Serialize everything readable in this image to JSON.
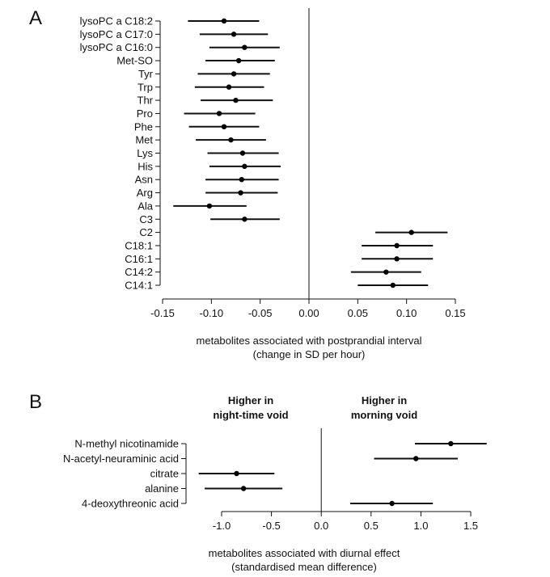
{
  "chart_data": [
    {
      "type": "forest",
      "panel_label": "A",
      "categories": [
        "lysoPC a C18:2",
        "lysoPC a C17:0",
        "lysoPC a C16:0",
        "Met-SO",
        "Tyr",
        "Trp",
        "Thr",
        "Pro",
        "Phe",
        "Met",
        "Lys",
        "His",
        "Asn",
        "Arg",
        "Ala",
        "C3",
        "C2",
        "C18:1",
        "C16:1",
        "C14:2",
        "C14:1"
      ],
      "estimates": [
        -0.087,
        -0.077,
        -0.066,
        -0.072,
        -0.077,
        -0.082,
        -0.075,
        -0.092,
        -0.087,
        -0.08,
        -0.068,
        -0.066,
        -0.069,
        -0.07,
        -0.102,
        -0.066,
        0.105,
        0.09,
        0.09,
        0.079,
        0.086
      ],
      "ci_low": [
        -0.124,
        -0.112,
        -0.102,
        -0.106,
        -0.114,
        -0.117,
        -0.111,
        -0.128,
        -0.123,
        -0.116,
        -0.104,
        -0.102,
        -0.106,
        -0.106,
        -0.139,
        -0.101,
        0.068,
        0.054,
        0.054,
        0.043,
        0.05
      ],
      "ci_high": [
        -0.051,
        -0.042,
        -0.03,
        -0.035,
        -0.04,
        -0.046,
        -0.037,
        -0.055,
        -0.051,
        -0.044,
        -0.031,
        -0.029,
        -0.031,
        -0.032,
        -0.064,
        -0.03,
        0.142,
        0.127,
        0.127,
        0.115,
        0.122
      ],
      "xticks": [
        "-0.15",
        "-0.10",
        "-0.05",
        "0.00",
        "0.05",
        "0.10",
        "0.15"
      ],
      "xlim": [
        -0.15,
        0.15
      ],
      "xlabel_line1": "metabolites associated with postprandial interval",
      "xlabel_line2": "(change in SD per hour)",
      "reference_line": 0
    },
    {
      "type": "forest",
      "panel_label": "B",
      "header_left_line1": "Higher in",
      "header_left_line2": "night-time void",
      "header_right_line1": "Higher in",
      "header_right_line2": "morning void",
      "categories": [
        "N-methyl nicotinamide",
        "N-acetyl-neuraminic acid",
        "citrate",
        "alanine",
        "4-deoxythreonic acid"
      ],
      "estimates": [
        1.3,
        0.95,
        -0.85,
        -0.78,
        0.71
      ],
      "ci_low": [
        0.94,
        0.53,
        -1.23,
        -1.17,
        0.29
      ],
      "ci_high": [
        1.66,
        1.37,
        -0.47,
        -0.39,
        1.12
      ],
      "xticks": [
        "-1.0",
        "-0.5",
        "0.0",
        "0.5",
        "1.0",
        "1.5"
      ],
      "xlim": [
        -1.0,
        1.5
      ],
      "xlabel_line1": "metabolites associated with diurnal effect",
      "xlabel_line2": "(standardised mean difference)",
      "reference_line": 0
    }
  ]
}
